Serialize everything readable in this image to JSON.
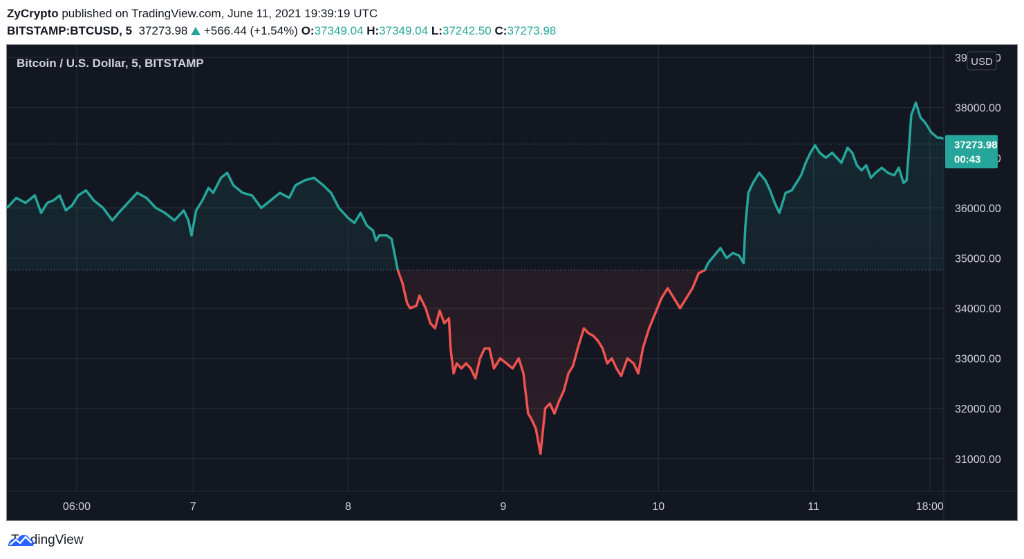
{
  "header": {
    "publisher": "ZyCrypto",
    "published_text": " published on TradingView.com, June 11, 2021 19:39:19 UTC",
    "symbol": "BITSTAMP:BTCUSD, 5",
    "last": "37273.98",
    "change": "+566.44 (+1.54%)",
    "open_label": "O:",
    "open": "37349.04",
    "high_label": "H:",
    "high": "37349.04",
    "low_label": "L:",
    "low": "37242.50",
    "close_label": "C:",
    "close": "37273.98"
  },
  "chart_data": {
    "type": "line",
    "title": "Bitcoin / U.S. Dollar, 5, BITSTAMP",
    "currency": "USD",
    "x_unit": "days since June 6, 2021 00:00 UTC",
    "xlim": [
      5.8,
      11.84
    ],
    "ylim": [
      30350,
      39250
    ],
    "baseline": 34760,
    "last_value": 37273.98,
    "last_label": "37273.98",
    "countdown": "00:43",
    "x_ticks": [
      {
        "x": 6.25,
        "label": "06:00"
      },
      {
        "x": 7.0,
        "label": "7"
      },
      {
        "x": 8.0,
        "label": "8"
      },
      {
        "x": 9.0,
        "label": "9"
      },
      {
        "x": 10.0,
        "label": "10"
      },
      {
        "x": 11.0,
        "label": "11"
      },
      {
        "x": 11.75,
        "label": "18:00"
      }
    ],
    "y_ticks": [
      {
        "y": 39000,
        "label": "39000.00"
      },
      {
        "y": 38000,
        "label": "38000.00"
      },
      {
        "y": 37000,
        "label": "37000.00"
      },
      {
        "y": 36000,
        "label": "36000.00"
      },
      {
        "y": 35000,
        "label": "35000.00"
      },
      {
        "y": 34000,
        "label": "34000.00"
      },
      {
        "y": 33000,
        "label": "33000.00"
      },
      {
        "y": 32000,
        "label": "32000.00"
      },
      {
        "y": 31000,
        "label": "31000.00"
      }
    ],
    "colors": {
      "up": "#26a69a",
      "down": "#ef5350",
      "background": "#131722",
      "grid": "#2a2e39",
      "text": "#d1d4dc"
    },
    "series": [
      {
        "values": [
          [
            5.8,
            36000
          ],
          [
            5.86,
            36200
          ],
          [
            5.92,
            36100
          ],
          [
            5.98,
            36250
          ],
          [
            6.02,
            35900
          ],
          [
            6.06,
            36100
          ],
          [
            6.1,
            36150
          ],
          [
            6.14,
            36250
          ],
          [
            6.18,
            35950
          ],
          [
            6.22,
            36050
          ],
          [
            6.26,
            36250
          ],
          [
            6.31,
            36350
          ],
          [
            6.36,
            36150
          ],
          [
            6.42,
            36000
          ],
          [
            6.48,
            35750
          ],
          [
            6.52,
            35900
          ],
          [
            6.58,
            36100
          ],
          [
            6.64,
            36300
          ],
          [
            6.7,
            36200
          ],
          [
            6.76,
            36000
          ],
          [
            6.82,
            35900
          ],
          [
            6.88,
            35750
          ],
          [
            6.94,
            35950
          ],
          [
            6.97,
            35750
          ],
          [
            6.99,
            35450
          ],
          [
            7.02,
            35950
          ],
          [
            7.06,
            36150
          ],
          [
            7.1,
            36400
          ],
          [
            7.13,
            36300
          ],
          [
            7.18,
            36600
          ],
          [
            7.22,
            36700
          ],
          [
            7.26,
            36450
          ],
          [
            7.32,
            36300
          ],
          [
            7.38,
            36250
          ],
          [
            7.44,
            36000
          ],
          [
            7.5,
            36150
          ],
          [
            7.56,
            36300
          ],
          [
            7.62,
            36200
          ],
          [
            7.66,
            36450
          ],
          [
            7.72,
            36550
          ],
          [
            7.78,
            36600
          ],
          [
            7.84,
            36450
          ],
          [
            7.89,
            36300
          ],
          [
            7.94,
            36000
          ],
          [
            8.0,
            35800
          ],
          [
            8.04,
            35700
          ],
          [
            8.08,
            35900
          ],
          [
            8.12,
            35650
          ],
          [
            8.16,
            35550
          ],
          [
            8.18,
            35350
          ],
          [
            8.2,
            35450
          ],
          [
            8.25,
            35450
          ],
          [
            8.28,
            35380
          ],
          [
            8.32,
            34760
          ],
          [
            8.35,
            34500
          ],
          [
            8.38,
            34100
          ],
          [
            8.4,
            34000
          ],
          [
            8.44,
            34050
          ],
          [
            8.46,
            34250
          ],
          [
            8.5,
            34000
          ],
          [
            8.53,
            33700
          ],
          [
            8.56,
            33600
          ],
          [
            8.59,
            33950
          ],
          [
            8.62,
            33700
          ],
          [
            8.65,
            33800
          ],
          [
            8.66,
            33200
          ],
          [
            8.68,
            32700
          ],
          [
            8.7,
            32900
          ],
          [
            8.73,
            32800
          ],
          [
            8.76,
            32900
          ],
          [
            8.79,
            32800
          ],
          [
            8.82,
            32600
          ],
          [
            8.85,
            33000
          ],
          [
            8.88,
            33200
          ],
          [
            8.91,
            33200
          ],
          [
            8.94,
            32800
          ],
          [
            8.98,
            33000
          ],
          [
            9.02,
            32900
          ],
          [
            9.06,
            32800
          ],
          [
            9.1,
            33000
          ],
          [
            9.13,
            32700
          ],
          [
            9.16,
            31900
          ],
          [
            9.18,
            31800
          ],
          [
            9.21,
            31600
          ],
          [
            9.24,
            31100
          ],
          [
            9.27,
            32000
          ],
          [
            9.3,
            32100
          ],
          [
            9.33,
            31900
          ],
          [
            9.36,
            32150
          ],
          [
            9.39,
            32350
          ],
          [
            9.42,
            32700
          ],
          [
            9.45,
            32850
          ],
          [
            9.48,
            33200
          ],
          [
            9.52,
            33600
          ],
          [
            9.55,
            33500
          ],
          [
            9.58,
            33450
          ],
          [
            9.61,
            33350
          ],
          [
            9.64,
            33200
          ],
          [
            9.67,
            32900
          ],
          [
            9.7,
            33000
          ],
          [
            9.73,
            32800
          ],
          [
            9.76,
            32650
          ],
          [
            9.8,
            33000
          ],
          [
            9.84,
            32900
          ],
          [
            9.87,
            32700
          ],
          [
            9.9,
            33200
          ],
          [
            9.94,
            33600
          ],
          [
            9.98,
            33900
          ],
          [
            10.02,
            34200
          ],
          [
            10.06,
            34400
          ],
          [
            10.1,
            34200
          ],
          [
            10.14,
            34000
          ],
          [
            10.18,
            34200
          ],
          [
            10.22,
            34400
          ],
          [
            10.26,
            34700
          ],
          [
            10.3,
            34760
          ],
          [
            10.32,
            34900
          ],
          [
            10.36,
            35050
          ],
          [
            10.4,
            35200
          ],
          [
            10.44,
            35000
          ],
          [
            10.48,
            35100
          ],
          [
            10.52,
            35050
          ],
          [
            10.55,
            34900
          ],
          [
            10.56,
            35600
          ],
          [
            10.58,
            36300
          ],
          [
            10.61,
            36500
          ],
          [
            10.65,
            36700
          ],
          [
            10.69,
            36550
          ],
          [
            10.72,
            36350
          ],
          [
            10.75,
            36100
          ],
          [
            10.78,
            35900
          ],
          [
            10.82,
            36300
          ],
          [
            10.86,
            36350
          ],
          [
            10.89,
            36500
          ],
          [
            10.92,
            36650
          ],
          [
            10.95,
            36900
          ],
          [
            10.98,
            37100
          ],
          [
            11.01,
            37250
          ],
          [
            11.04,
            37100
          ],
          [
            11.08,
            37000
          ],
          [
            11.12,
            37100
          ],
          [
            11.15,
            37000
          ],
          [
            11.18,
            36900
          ],
          [
            11.22,
            37200
          ],
          [
            11.25,
            37100
          ],
          [
            11.28,
            36850
          ],
          [
            11.31,
            36750
          ],
          [
            11.34,
            36850
          ],
          [
            11.37,
            36600
          ],
          [
            11.4,
            36700
          ],
          [
            11.44,
            36800
          ],
          [
            11.48,
            36700
          ],
          [
            11.52,
            36650
          ],
          [
            11.55,
            36800
          ],
          [
            11.58,
            36500
          ],
          [
            11.6,
            36550
          ],
          [
            11.61,
            36950
          ],
          [
            11.63,
            37850
          ],
          [
            11.66,
            38100
          ],
          [
            11.69,
            37800
          ],
          [
            11.72,
            37700
          ],
          [
            11.76,
            37500
          ],
          [
            11.8,
            37400
          ],
          [
            11.82,
            37400
          ],
          [
            11.84,
            37380
          ]
        ]
      }
    ]
  }
}
